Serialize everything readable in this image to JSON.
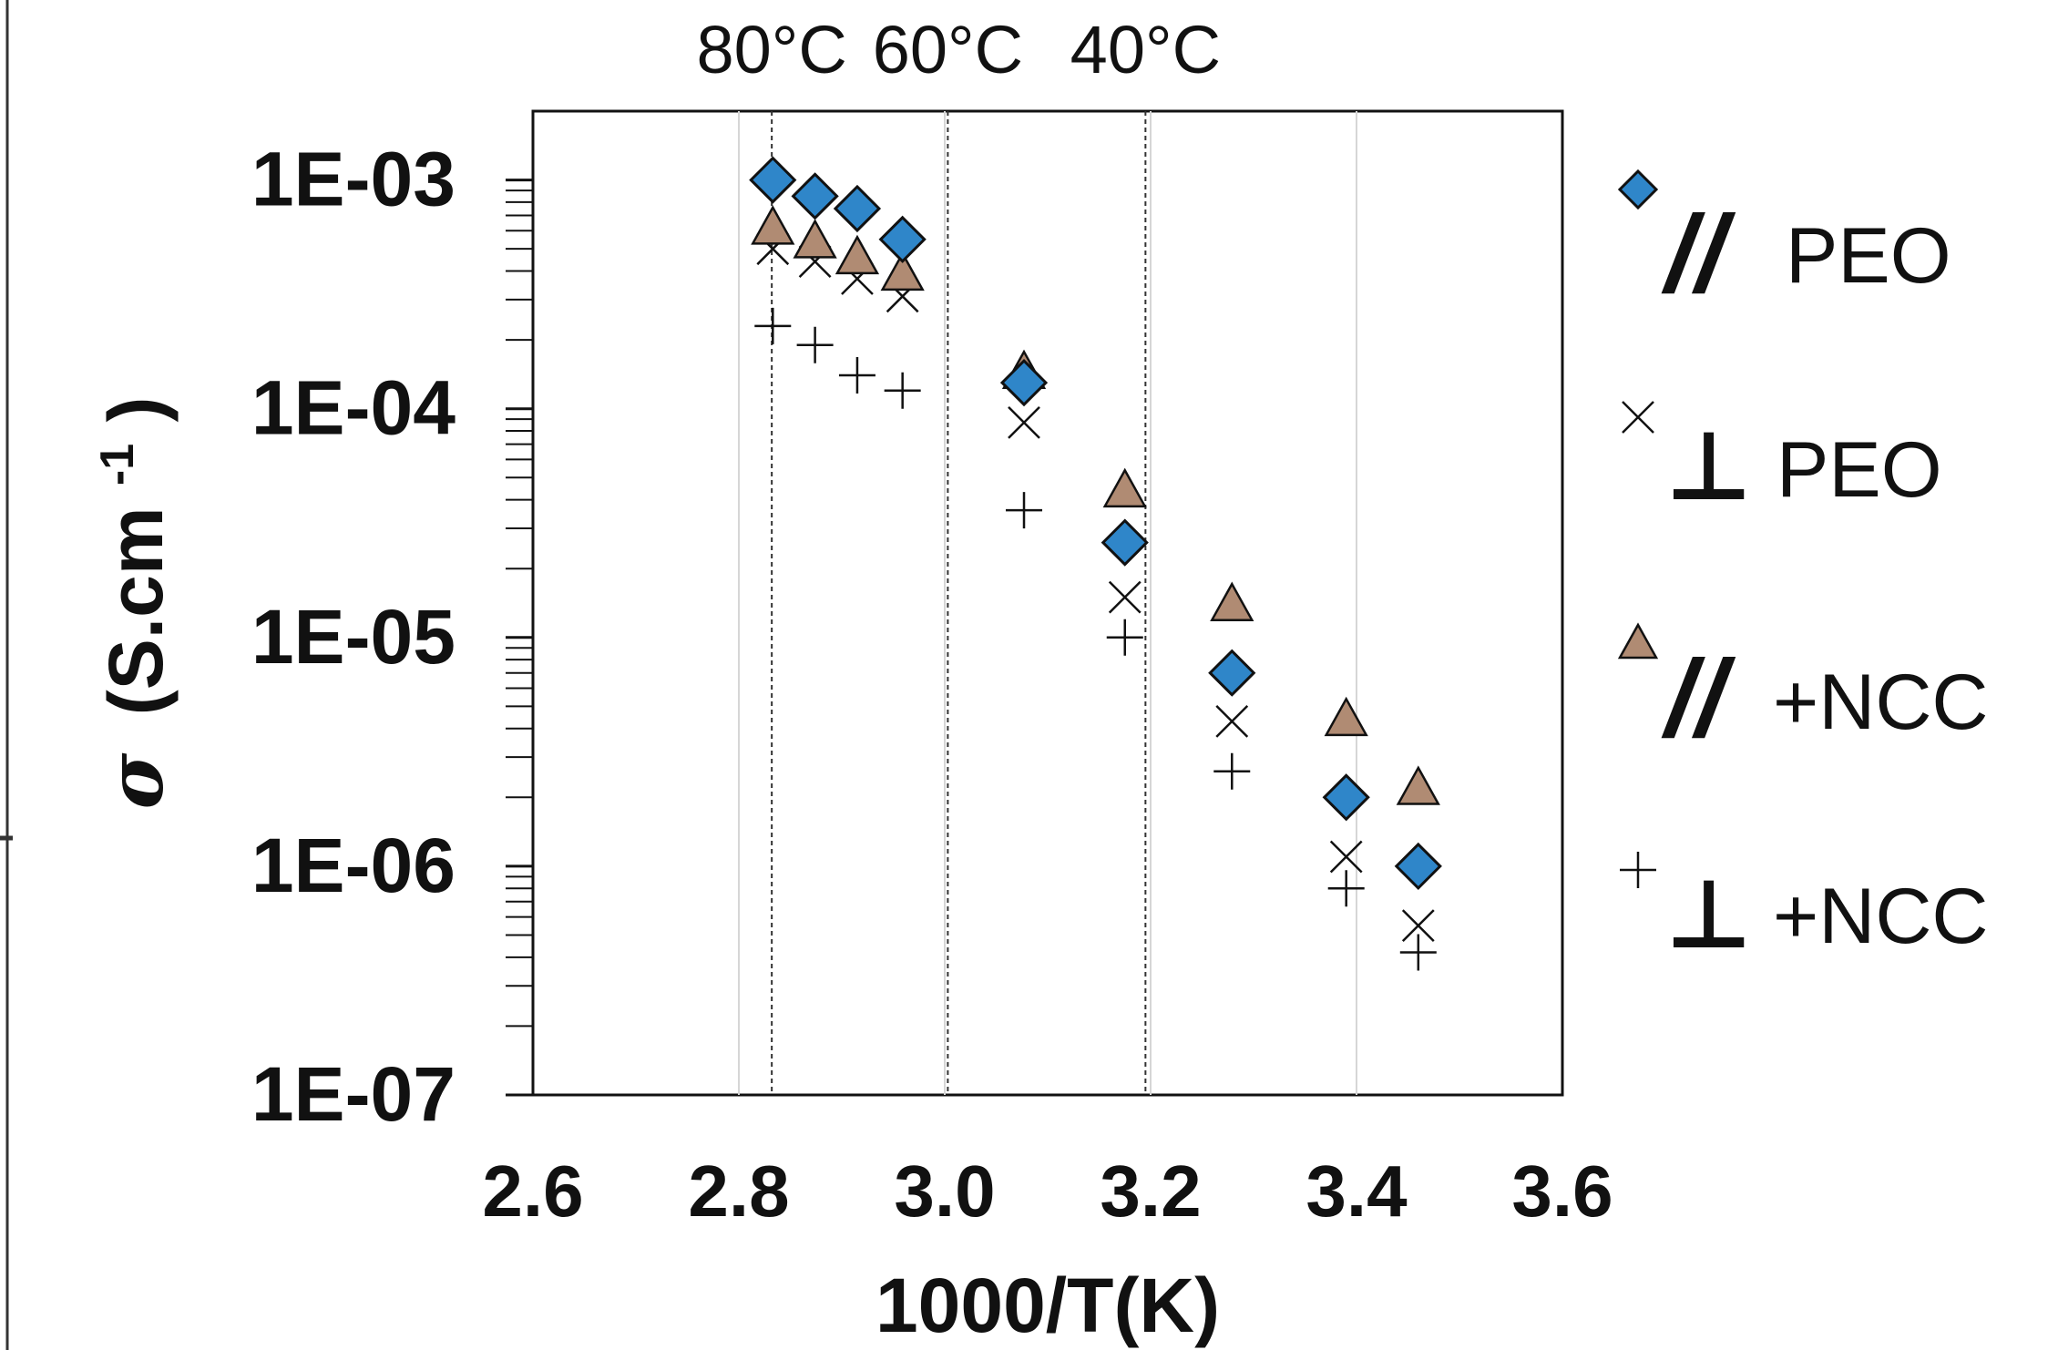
{
  "chart_data": {
    "type": "scatter",
    "title": "",
    "xlabel": "1000/T(K)",
    "ylabel_symbol": "σ",
    "ylabel_unit": "(S.cm",
    "ylabel_exp": "-1",
    "ylabel_close": ")",
    "xlim": [
      2.6,
      3.6
    ],
    "ylim": [
      1e-07,
      0.002
    ],
    "yscale": "log",
    "x_ticks": [
      "2.6",
      "2.8",
      "3.0",
      "3.2",
      "3.4",
      "3.6"
    ],
    "x_tick_values": [
      2.6,
      2.8,
      3.0,
      3.2,
      3.4,
      3.6
    ],
    "y_ticks": [
      "1E-03",
      "1E-04",
      "1E-05",
      "1E-06",
      "1E-07"
    ],
    "y_tick_values": [
      0.001,
      0.0001,
      1e-05,
      1e-06,
      1e-07
    ],
    "temperature_markers": [
      {
        "label": "80°C",
        "x": 2.832
      },
      {
        "label": "60°C",
        "x": 3.003
      },
      {
        "label": "40°C",
        "x": 3.195
      }
    ],
    "legend_position": "right",
    "series": [
      {
        "symbol": "//",
        "name": "PEO",
        "marker": "diamond",
        "color": "#2f86c9",
        "x": [
          2.833,
          2.874,
          2.915,
          2.959,
          3.077,
          3.175,
          3.279,
          3.39,
          3.46
        ],
        "y": [
          0.001,
          0.00085,
          0.00075,
          0.00055,
          0.00013,
          2.6e-05,
          7e-06,
          2e-06,
          1e-06
        ]
      },
      {
        "symbol": "⊥",
        "name": "PEO",
        "marker": "x",
        "color": "#111111",
        "x": [
          2.833,
          2.874,
          2.915,
          2.959,
          3.077,
          3.175,
          3.279,
          3.39,
          3.46
        ],
        "y": [
          0.0005,
          0.00044,
          0.00037,
          0.00031,
          8.7e-05,
          1.5e-05,
          4.3e-06,
          1.1e-06,
          5.5e-07
        ]
      },
      {
        "symbol": "//",
        "name": "+NCC",
        "marker": "triangle",
        "color": "#b08b73",
        "x": [
          2.833,
          2.874,
          2.915,
          2.959,
          3.077,
          3.175,
          3.279,
          3.39,
          3.46
        ],
        "y": [
          0.00062,
          0.00054,
          0.00046,
          0.00039,
          0.000145,
          4.4e-05,
          1.4e-05,
          4.4e-06,
          2.2e-06
        ]
      },
      {
        "symbol": "⊥",
        "name": "+NCC",
        "marker": "plus",
        "color": "#111111",
        "x": [
          2.833,
          2.874,
          2.915,
          2.959,
          3.077,
          3.175,
          3.279,
          3.39,
          3.46
        ],
        "y": [
          0.00023,
          0.00019,
          0.00014,
          0.00012,
          3.6e-05,
          1e-05,
          2.6e-06,
          8e-07,
          4.2e-07
        ]
      }
    ]
  }
}
